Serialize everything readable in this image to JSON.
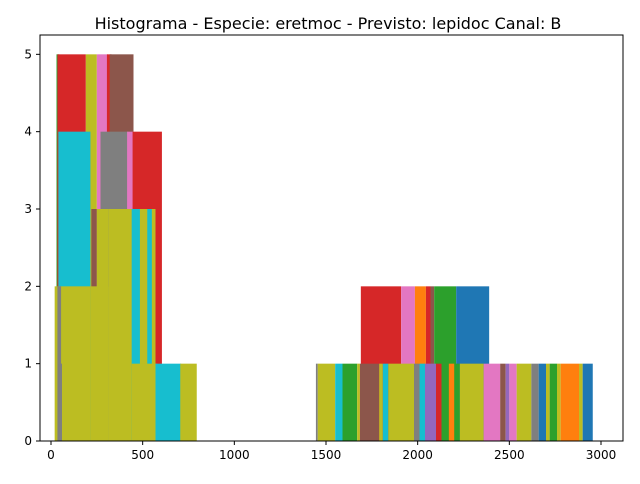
{
  "chart_data": {
    "type": "bar",
    "title": "Histograma - Especie: eretmoc - Previsto: lepidoc Canal: B",
    "xlabel": "",
    "ylabel": "",
    "xlim": [
      -60,
      3120
    ],
    "ylim": [
      0,
      5.25
    ],
    "xticks": [
      0,
      500,
      1000,
      1500,
      2000,
      2500,
      3000
    ],
    "yticks": [
      0,
      1,
      2,
      3,
      4,
      5
    ],
    "grid": false,
    "legend": "none",
    "palette": {
      "blue": "#1f77b4",
      "orange": "#ff7f0e",
      "green": "#2ca02c",
      "red": "#d62728",
      "purple": "#9467bd",
      "brown": "#8c564b",
      "pink": "#e377c2",
      "gray": "#7f7f7f",
      "olive": "#bcbd22",
      "cyan": "#17becf"
    },
    "bars": [
      {
        "x0": 30,
        "x1": 45,
        "h": 5,
        "c": "green"
      },
      {
        "x0": 35,
        "x1": 190,
        "h": 5,
        "c": "red"
      },
      {
        "x0": 190,
        "x1": 250,
        "h": 5,
        "c": "olive"
      },
      {
        "x0": 250,
        "x1": 310,
        "h": 5,
        "c": "pink"
      },
      {
        "x0": 305,
        "x1": 330,
        "h": 5,
        "c": "red"
      },
      {
        "x0": 320,
        "x1": 450,
        "h": 5,
        "c": "brown"
      },
      {
        "x0": 40,
        "x1": 215,
        "h": 4,
        "c": "cyan"
      },
      {
        "x0": 270,
        "x1": 420,
        "h": 4,
        "c": "gray"
      },
      {
        "x0": 415,
        "x1": 450,
        "h": 4,
        "c": "pink"
      },
      {
        "x0": 445,
        "x1": 605,
        "h": 4,
        "c": "red"
      },
      {
        "x0": 220,
        "x1": 250,
        "h": 3,
        "c": "brown"
      },
      {
        "x0": 250,
        "x1": 315,
        "h": 3,
        "c": "olive"
      },
      {
        "x0": 315,
        "x1": 445,
        "h": 3,
        "c": "olive"
      },
      {
        "x0": 440,
        "x1": 490,
        "h": 3,
        "c": "cyan"
      },
      {
        "x0": 485,
        "x1": 530,
        "h": 3,
        "c": "olive"
      },
      {
        "x0": 525,
        "x1": 555,
        "h": 3,
        "c": "cyan"
      },
      {
        "x0": 550,
        "x1": 570,
        "h": 3,
        "c": "olive"
      },
      {
        "x0": 20,
        "x1": 215,
        "h": 2,
        "c": "olive"
      },
      {
        "x0": 215,
        "x1": 315,
        "h": 2,
        "c": "olive"
      },
      {
        "x0": 35,
        "x1": 55,
        "h": 2,
        "c": "gray"
      },
      {
        "x0": 440,
        "x1": 580,
        "h": 1,
        "c": "olive"
      },
      {
        "x0": 570,
        "x1": 710,
        "h": 1,
        "c": "cyan"
      },
      {
        "x0": 705,
        "x1": 795,
        "h": 1,
        "c": "olive"
      },
      {
        "x0": 40,
        "x1": 60,
        "h": 1,
        "c": "gray"
      },
      {
        "x0": 1690,
        "x1": 1910,
        "h": 2,
        "c": "red"
      },
      {
        "x0": 1910,
        "x1": 1985,
        "h": 2,
        "c": "pink"
      },
      {
        "x0": 1985,
        "x1": 2045,
        "h": 2,
        "c": "orange"
      },
      {
        "x0": 2045,
        "x1": 2070,
        "h": 2,
        "c": "red"
      },
      {
        "x0": 2070,
        "x1": 2090,
        "h": 2,
        "c": "brown"
      },
      {
        "x0": 2090,
        "x1": 2210,
        "h": 2,
        "c": "green"
      },
      {
        "x0": 2210,
        "x1": 2390,
        "h": 2,
        "c": "blue"
      },
      {
        "x0": 1445,
        "x1": 1455,
        "h": 1,
        "c": "gray"
      },
      {
        "x0": 1455,
        "x1": 1550,
        "h": 1,
        "c": "olive"
      },
      {
        "x0": 1550,
        "x1": 1590,
        "h": 1,
        "c": "cyan"
      },
      {
        "x0": 1590,
        "x1": 1670,
        "h": 1,
        "c": "green"
      },
      {
        "x0": 1670,
        "x1": 1685,
        "h": 1,
        "c": "olive"
      },
      {
        "x0": 1685,
        "x1": 1790,
        "h": 1,
        "c": "brown"
      },
      {
        "x0": 1790,
        "x1": 1810,
        "h": 1,
        "c": "olive"
      },
      {
        "x0": 1810,
        "x1": 1840,
        "h": 1,
        "c": "cyan"
      },
      {
        "x0": 1840,
        "x1": 1980,
        "h": 1,
        "c": "olive"
      },
      {
        "x0": 1980,
        "x1": 2010,
        "h": 1,
        "c": "gray"
      },
      {
        "x0": 2010,
        "x1": 2040,
        "h": 1,
        "c": "cyan"
      },
      {
        "x0": 2040,
        "x1": 2100,
        "h": 1,
        "c": "purple"
      },
      {
        "x0": 2100,
        "x1": 2130,
        "h": 1,
        "c": "red"
      },
      {
        "x0": 2130,
        "x1": 2170,
        "h": 1,
        "c": "green"
      },
      {
        "x0": 2170,
        "x1": 2200,
        "h": 1,
        "c": "orange"
      },
      {
        "x0": 2200,
        "x1": 2230,
        "h": 1,
        "c": "green"
      },
      {
        "x0": 2230,
        "x1": 2360,
        "h": 1,
        "c": "olive"
      },
      {
        "x0": 2360,
        "x1": 2450,
        "h": 1,
        "c": "pink"
      },
      {
        "x0": 2450,
        "x1": 2480,
        "h": 1,
        "c": "brown"
      },
      {
        "x0": 2480,
        "x1": 2500,
        "h": 1,
        "c": "purple"
      },
      {
        "x0": 2500,
        "x1": 2540,
        "h": 1,
        "c": "pink"
      },
      {
        "x0": 2540,
        "x1": 2620,
        "h": 1,
        "c": "olive"
      },
      {
        "x0": 2620,
        "x1": 2660,
        "h": 1,
        "c": "gray"
      },
      {
        "x0": 2660,
        "x1": 2700,
        "h": 1,
        "c": "blue"
      },
      {
        "x0": 2700,
        "x1": 2720,
        "h": 1,
        "c": "olive"
      },
      {
        "x0": 2720,
        "x1": 2760,
        "h": 1,
        "c": "green"
      },
      {
        "x0": 2760,
        "x1": 2780,
        "h": 1,
        "c": "olive"
      },
      {
        "x0": 2780,
        "x1": 2880,
        "h": 1,
        "c": "orange"
      },
      {
        "x0": 2880,
        "x1": 2900,
        "h": 1,
        "c": "olive"
      },
      {
        "x0": 2900,
        "x1": 2955,
        "h": 1,
        "c": "blue"
      }
    ]
  }
}
